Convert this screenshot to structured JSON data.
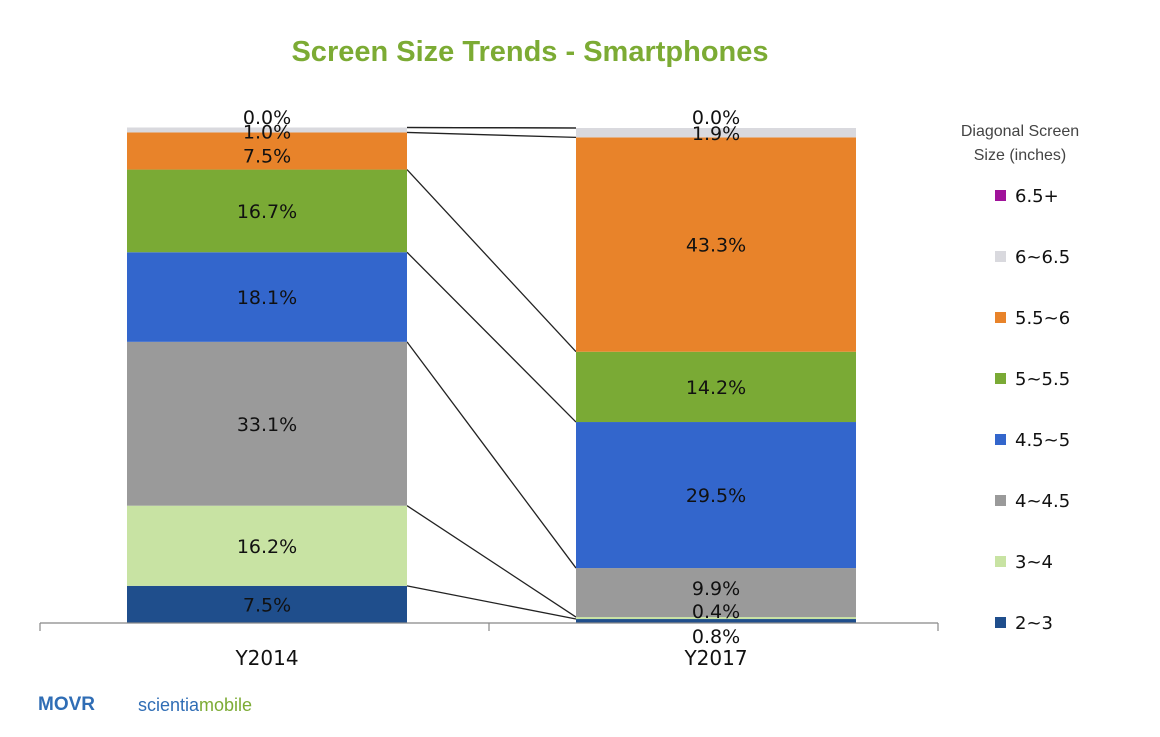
{
  "chart_data": {
    "type": "bar",
    "stacked": true,
    "percent_stacked": true,
    "title": "Screen Size Trends - Smartphones",
    "legend_title": "Diagonal Screen Size (inches)",
    "legend_position": "right",
    "categories": [
      "Y2014",
      "Y2017"
    ],
    "value_labels": {
      "Y2014": [
        "7.5%",
        "16.2%",
        "33.1%",
        "18.1%",
        "16.7%",
        "7.5%",
        "1.0%",
        "0.0%"
      ],
      "Y2017": [
        "0.8%",
        "0.4%",
        "9.9%",
        "29.5%",
        "14.2%",
        "43.3%",
        "1.9%",
        "0.0%"
      ]
    },
    "series": [
      {
        "name": "2~3",
        "color": "#1f4e8c",
        "values": [
          7.5,
          0.8
        ]
      },
      {
        "name": "3~4",
        "color": "#c8e3a3",
        "values": [
          16.2,
          0.4
        ]
      },
      {
        "name": "4~4.5",
        "color": "#9a9a9a",
        "values": [
          33.1,
          9.9
        ]
      },
      {
        "name": "4.5~5",
        "color": "#3366cc",
        "values": [
          18.1,
          29.5
        ]
      },
      {
        "name": "5~5.5",
        "color": "#7aaa35",
        "values": [
          16.7,
          14.2
        ]
      },
      {
        "name": "5.5~6",
        "color": "#e8832a",
        "values": [
          7.5,
          43.3
        ]
      },
      {
        "name": "6~6.5",
        "color": "#d9d9de",
        "values": [
          1.0,
          1.9
        ]
      },
      {
        "name": "6.5+",
        "color": "#a0139a",
        "values": [
          0.0,
          0.0
        ]
      }
    ],
    "legend_order": [
      "6.5+",
      "6~6.5",
      "5.5~6",
      "5~5.5",
      "4.5~5",
      "4~4.5",
      "3~4",
      "2~3"
    ],
    "ylim": [
      0,
      100
    ],
    "grid": false,
    "connector_lines": true
  },
  "branding": {
    "movr": "MOVR",
    "scientia": "scientia",
    "mobile": "mobile"
  }
}
